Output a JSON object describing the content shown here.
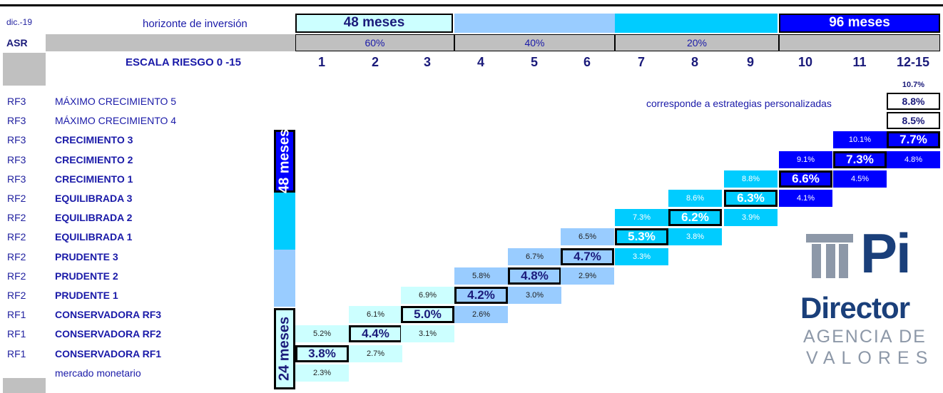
{
  "header": {
    "date": "dic.-19",
    "asr": "ASR",
    "horizon_label": "horizonte de inversión",
    "horizon_48": "48 meses",
    "horizon_96": "96 meses",
    "pct_60": "60%",
    "pct_40": "40%",
    "pct_20": "20%",
    "scale_label": "ESCALA RIESGO  0 -15",
    "scale_values": [
      "1",
      "2",
      "3",
      "4",
      "5",
      "6",
      "7",
      "8",
      "9",
      "10",
      "11",
      "12-15"
    ]
  },
  "personalized_note": "corresponde a estrategias personalizadas",
  "vertical_48": "48 meses",
  "vertical_24": "24 meses",
  "rows": [
    {
      "code": "RF3",
      "name": "MÁXIMO CRECIMIENTO 5",
      "bold": false
    },
    {
      "code": "RF3",
      "name": "MÁXIMO CRECIMIENTO 4",
      "bold": false
    },
    {
      "code": "RF3",
      "name": "CRECIMIENTO 3",
      "bold": true
    },
    {
      "code": "RF3",
      "name": "CRECIMIENTO 2",
      "bold": true
    },
    {
      "code": "RF3",
      "name": "CRECIMIENTO 1",
      "bold": true
    },
    {
      "code": "RF2",
      "name": "EQUILIBRADA 3",
      "bold": true
    },
    {
      "code": "RF2",
      "name": "EQUILIBRADA 2",
      "bold": true
    },
    {
      "code": "RF2",
      "name": "EQUILIBRADA 1",
      "bold": true
    },
    {
      "code": "RF2",
      "name": "PRUDENTE 3",
      "bold": true
    },
    {
      "code": "RF2",
      "name": "PRUDENTE 2",
      "bold": true
    },
    {
      "code": "RF2",
      "name": "PRUDENTE 1",
      "bold": true
    },
    {
      "code": "RF1",
      "name": "CONSERVADORA RF3",
      "bold": true
    },
    {
      "code": "RF1",
      "name": "CONSERVADORA RF2",
      "bold": true
    },
    {
      "code": "RF1",
      "name": "CONSERVADORA RF1",
      "bold": true
    },
    {
      "code": "",
      "name": "mercado monetario",
      "bold": false
    }
  ],
  "chart_data": {
    "type": "table",
    "columns": [
      "1",
      "2",
      "3",
      "4",
      "5",
      "6",
      "7",
      "8",
      "9",
      "10",
      "11",
      "12-15"
    ],
    "cells": [
      {
        "row": -1,
        "col": 11,
        "value": "10.7%",
        "main": false,
        "color": "#ffffff"
      },
      {
        "row": 0,
        "col": 11,
        "value": "8.8%",
        "main": true,
        "color": "#ffffff"
      },
      {
        "row": 1,
        "col": 11,
        "value": "8.5%",
        "main": true,
        "color": "#ffffff"
      },
      {
        "row": 2,
        "col": 10,
        "value": "10.1%",
        "main": false,
        "color": "#0000ff"
      },
      {
        "row": 2,
        "col": 11,
        "value": "7.7%",
        "main": true,
        "color": "#0000ff"
      },
      {
        "row": 3,
        "col": 9,
        "value": "9.1%",
        "main": false,
        "color": "#0000ff"
      },
      {
        "row": 3,
        "col": 10,
        "value": "7.3%",
        "main": true,
        "color": "#0000ff"
      },
      {
        "row": 3,
        "col": 11,
        "value": "4.8%",
        "main": false,
        "color": "#0000ff"
      },
      {
        "row": 4,
        "col": 8,
        "value": "8.8%",
        "main": false,
        "color": "#00ccff"
      },
      {
        "row": 4,
        "col": 9,
        "value": "6.6%",
        "main": true,
        "color": "#0000ff"
      },
      {
        "row": 4,
        "col": 10,
        "value": "4.5%",
        "main": false,
        "color": "#0000ff"
      },
      {
        "row": 5,
        "col": 7,
        "value": "8.6%",
        "main": false,
        "color": "#00ccff"
      },
      {
        "row": 5,
        "col": 8,
        "value": "6.3%",
        "main": true,
        "color": "#00ccff"
      },
      {
        "row": 5,
        "col": 9,
        "value": "4.1%",
        "main": false,
        "color": "#0000ff"
      },
      {
        "row": 6,
        "col": 6,
        "value": "7.3%",
        "main": false,
        "color": "#00ccff"
      },
      {
        "row": 6,
        "col": 7,
        "value": "6.2%",
        "main": true,
        "color": "#00ccff"
      },
      {
        "row": 6,
        "col": 8,
        "value": "3.9%",
        "main": false,
        "color": "#00ccff"
      },
      {
        "row": 7,
        "col": 5,
        "value": "6.5%",
        "main": false,
        "color": "#99ccff"
      },
      {
        "row": 7,
        "col": 6,
        "value": "5.3%",
        "main": true,
        "color": "#00ccff"
      },
      {
        "row": 7,
        "col": 7,
        "value": "3.8%",
        "main": false,
        "color": "#00ccff"
      },
      {
        "row": 8,
        "col": 4,
        "value": "6.7%",
        "main": false,
        "color": "#99ccff"
      },
      {
        "row": 8,
        "col": 5,
        "value": "4.7%",
        "main": true,
        "color": "#99ccff"
      },
      {
        "row": 8,
        "col": 6,
        "value": "3.3%",
        "main": false,
        "color": "#00ccff"
      },
      {
        "row": 9,
        "col": 3,
        "value": "5.8%",
        "main": false,
        "color": "#99ccff"
      },
      {
        "row": 9,
        "col": 4,
        "value": "4.8%",
        "main": true,
        "color": "#99ccff"
      },
      {
        "row": 9,
        "col": 5,
        "value": "2.9%",
        "main": false,
        "color": "#99ccff"
      },
      {
        "row": 10,
        "col": 2,
        "value": "6.9%",
        "main": false,
        "color": "#ccffff"
      },
      {
        "row": 10,
        "col": 3,
        "value": "4.2%",
        "main": true,
        "color": "#99ccff"
      },
      {
        "row": 10,
        "col": 4,
        "value": "3.0%",
        "main": false,
        "color": "#99ccff"
      },
      {
        "row": 11,
        "col": 1,
        "value": "6.1%",
        "main": false,
        "color": "#ccffff"
      },
      {
        "row": 11,
        "col": 2,
        "value": "5.0%",
        "main": true,
        "color": "#ccffff"
      },
      {
        "row": 11,
        "col": 3,
        "value": "2.6%",
        "main": false,
        "color": "#99ccff"
      },
      {
        "row": 12,
        "col": 0,
        "value": "5.2%",
        "main": false,
        "color": "#ccffff"
      },
      {
        "row": 12,
        "col": 1,
        "value": "4.4%",
        "main": true,
        "color": "#ccffff"
      },
      {
        "row": 12,
        "col": 2,
        "value": "3.1%",
        "main": false,
        "color": "#ccffff"
      },
      {
        "row": 13,
        "col": 0,
        "value": "3.8%",
        "main": true,
        "color": "#ccffff"
      },
      {
        "row": 13,
        "col": 1,
        "value": "2.7%",
        "main": false,
        "color": "#ccffff"
      },
      {
        "row": 14,
        "col": 0,
        "value": "2.3%",
        "main": false,
        "color": "#ccffff"
      }
    ]
  },
  "logo": {
    "brand": "Pi",
    "name": "Director",
    "line1": "AGENCIA DE",
    "line2": "VALORES"
  },
  "colors": {
    "lightcyan": "#ccffff",
    "lightblue": "#99ccff",
    "cyan": "#00ccff",
    "blue": "#0000ff",
    "grey": "#c0c0c0",
    "logo_blue": "#1a3f7a",
    "logo_grey": "#8d98a8"
  }
}
